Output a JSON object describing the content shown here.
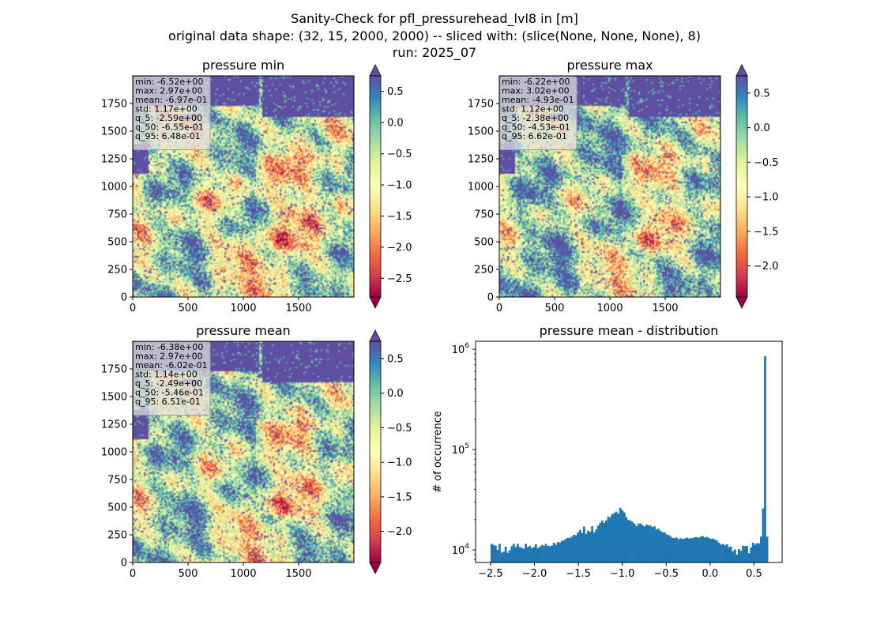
{
  "figure": {
    "title_lines": [
      "Sanity-Check for pfl_pressurehead_lvl8 in [m]",
      "original data shape: (32, 15, 2000, 2000) -- sliced with: (slice(None, None, None), 8)",
      "run: 2025_07"
    ]
  },
  "chart_data": [
    {
      "type": "heatmap",
      "title": "pressure min",
      "xlim": [
        0,
        2000
      ],
      "ylim": [
        0,
        2000
      ],
      "xticks": [
        0,
        500,
        1000,
        1500
      ],
      "yticks": [
        0,
        250,
        500,
        750,
        1000,
        1250,
        1500,
        1750
      ],
      "colormap": "Spectral",
      "colorbar": {
        "range": [
          -2.8,
          0.75
        ],
        "ticks": [
          0.5,
          0.0,
          -0.5,
          -1.0,
          -1.5,
          -2.0,
          -2.5
        ],
        "tick_labels": [
          "0.5",
          "0.0",
          "−0.5",
          "−1.0",
          "−1.5",
          "−2.0",
          "−2.5"
        ],
        "extend": "both"
      },
      "stats": [
        "min: -6.52e+00",
        "max: 2.97e+00",
        "mean: -6.97e-01",
        "std: 1.17e+00",
        "q_5: -2.59e+00",
        "q_50: -6.55e-01",
        "q_95: 6.48e-01"
      ]
    },
    {
      "type": "heatmap",
      "title": "pressure max",
      "xlim": [
        0,
        2000
      ],
      "ylim": [
        0,
        2000
      ],
      "xticks": [
        0,
        500,
        1000,
        1500
      ],
      "yticks": [
        0,
        250,
        500,
        750,
        1000,
        1250,
        1500,
        1750
      ],
      "colormap": "Spectral",
      "colorbar": {
        "range": [
          -2.45,
          0.75
        ],
        "ticks": [
          0.5,
          0.0,
          -0.5,
          -1.0,
          -1.5,
          -2.0
        ],
        "tick_labels": [
          "0.5",
          "0.0",
          "−0.5",
          "−1.0",
          "−1.5",
          "−2.0"
        ],
        "extend": "both"
      },
      "stats": [
        "min: -6.22e+00",
        "max: 3.02e+00",
        "mean: -4.93e-01",
        "std: 1.12e+00",
        "q_5: -2.38e+00",
        "q_50: -4.53e-01",
        "q_95: 6.62e-01"
      ]
    },
    {
      "type": "heatmap",
      "title": "pressure mean",
      "xlim": [
        0,
        2000
      ],
      "ylim": [
        0,
        2000
      ],
      "xticks": [
        0,
        500,
        1000,
        1500
      ],
      "yticks": [
        0,
        250,
        500,
        750,
        1000,
        1250,
        1500,
        1750
      ],
      "colormap": "Spectral",
      "colorbar": {
        "range": [
          -2.45,
          0.75
        ],
        "ticks": [
          0.5,
          0.0,
          -0.5,
          -1.0,
          -1.5,
          -2.0
        ],
        "tick_labels": [
          "0.5",
          "0.0",
          "−0.5",
          "−1.0",
          "−1.5",
          "−2.0"
        ],
        "extend": "both"
      },
      "stats": [
        "min: -6.38e+00",
        "max: 2.97e+00",
        "mean: -6.02e-01",
        "std: 1.14e+00",
        "q_5: -2.49e+00",
        "q_50: -5.46e-01",
        "q_95: 6.51e-01"
      ]
    },
    {
      "type": "bar",
      "title": "pressure mean - distribution",
      "ylabel": "# of occurrence",
      "xlabel": "",
      "y_scale": "log",
      "xlim": [
        -2.67,
        0.82
      ],
      "ylim": [
        7500,
        1200000
      ],
      "xticks": [
        -2.5,
        -2.0,
        -1.5,
        -1.0,
        -0.5,
        0.0,
        0.5
      ],
      "xtick_labels": [
        "−2.5",
        "−2.0",
        "−1.5",
        "−1.0",
        "−0.5",
        "0.0",
        "0.5"
      ],
      "yticks": [
        10000,
        100000,
        1000000
      ],
      "ytick_labels": [
        "10^4",
        "10^5",
        "10^6"
      ],
      "bar_color": "#1f77b4",
      "bin_range": [
        -2.5,
        0.66
      ],
      "values": [
        11500,
        11200,
        11000,
        10000,
        11500,
        9400,
        9600,
        10800,
        9400,
        9900,
        10900,
        11500,
        10700,
        11500,
        10700,
        10500,
        10300,
        11500,
        10600,
        11000,
        10400,
        10700,
        11400,
        10400,
        10800,
        11200,
        11000,
        11500,
        11000,
        10900,
        11100,
        11800,
        11300,
        12000,
        11800,
        12300,
        12500,
        12900,
        13200,
        13200,
        13600,
        14200,
        14000,
        15000,
        15800,
        14800,
        17100,
        14500,
        15600,
        15200,
        17200,
        14900,
        16000,
        17500,
        18600,
        19700,
        18600,
        19700,
        21400,
        21200,
        22800,
        23200,
        24100,
        22900,
        26300,
        24900,
        23600,
        21200,
        19900,
        19600,
        19100,
        18300,
        17300,
        18200,
        18400,
        17700,
        17100,
        17900,
        17600,
        17500,
        16900,
        17200,
        16000,
        16300,
        15500,
        15000,
        15000,
        14300,
        14100,
        13700,
        13200,
        13100,
        13300,
        12800,
        13100,
        12900,
        13000,
        13300,
        13000,
        13100,
        13100,
        13400,
        13400,
        13200,
        13600,
        13700,
        13300,
        13500,
        13200,
        12900,
        13000,
        12700,
        12400,
        11800,
        11300,
        11500,
        11100,
        11400,
        10700,
        10800,
        9700,
        10100,
        9000,
        10200,
        9800,
        11000,
        10900,
        11000,
        9300,
        10600,
        11800,
        11300,
        11700,
        11600,
        13600,
        25900,
        850000,
        13600
      ]
    }
  ]
}
